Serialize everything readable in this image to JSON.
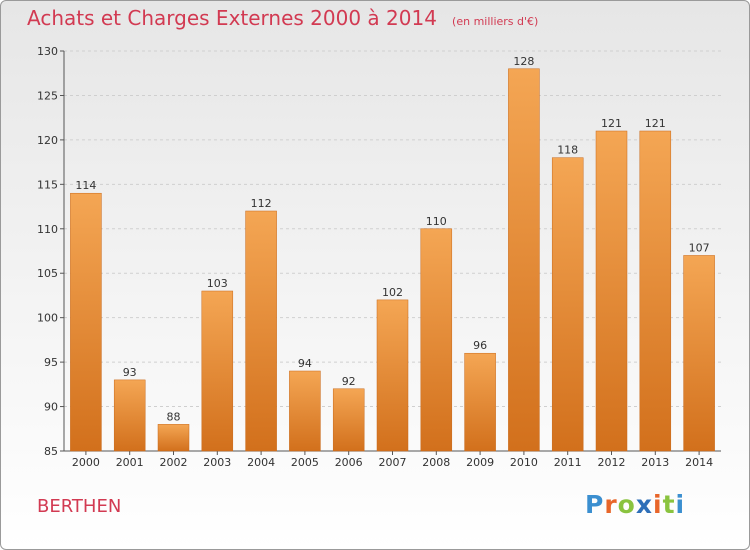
{
  "header": {
    "title": "Achats et Charges Externes 2000 à 2014",
    "unit": "(en milliers d'€)"
  },
  "footer": {
    "commune": "BERTHEN",
    "logo_text": "Proxiti"
  },
  "colors": {
    "title": "#d23a52",
    "bar_light": "#f4a654",
    "bar_dark": "#d2701c",
    "logo_letters": [
      "#3b8fd0",
      "#e8662a",
      "#8ac33f",
      "#2e6fb8",
      "#e8662a",
      "#8ac33f",
      "#3b8fd0"
    ]
  },
  "chart_data": {
    "type": "bar",
    "title": "Achats et Charges Externes 2000 à 2014",
    "subtitle": "(en milliers d'€)",
    "categories": [
      "2000",
      "2001",
      "2002",
      "2003",
      "2004",
      "2005",
      "2006",
      "2007",
      "2008",
      "2009",
      "2010",
      "2011",
      "2012",
      "2013",
      "2014"
    ],
    "values": [
      114,
      93,
      88,
      103,
      112,
      94,
      92,
      102,
      110,
      96,
      128,
      118,
      121,
      121,
      107
    ],
    "ylim": [
      85,
      130
    ],
    "yticks": [
      85,
      90,
      95,
      100,
      105,
      110,
      115,
      120,
      125,
      130
    ],
    "grid": true,
    "data_labels": true
  }
}
